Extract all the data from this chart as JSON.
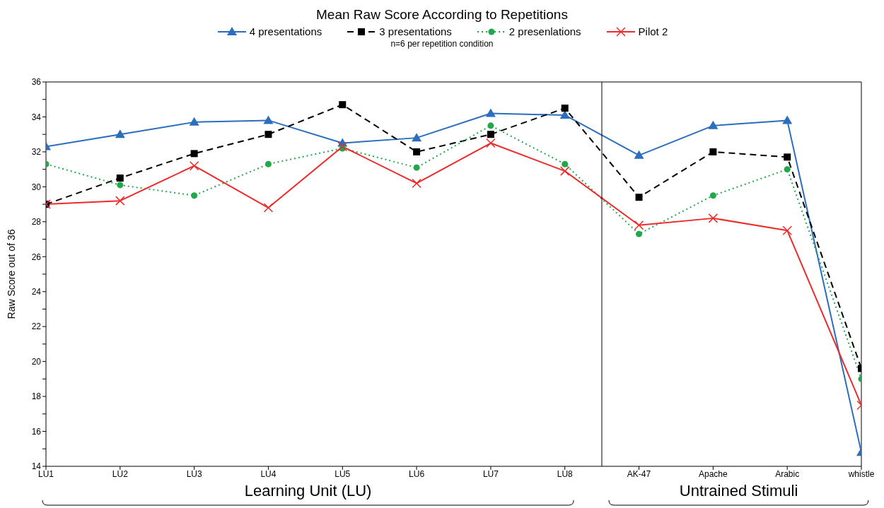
{
  "chart_data": {
    "type": "line",
    "title": "Mean Raw Score According to Repetitions",
    "subtitle": "n=6 per repetition condition",
    "ylabel": "Raw Score out of 36",
    "categories": [
      "LU1",
      "LU2",
      "LU3",
      "LU4",
      "LU5",
      "LU6",
      "LU7",
      "LU8",
      "AK-47",
      "Apache",
      "Arabic",
      "whistle"
    ],
    "series": [
      {
        "name": "4 presentations",
        "color": "#2a6ebd",
        "marker": "triangle",
        "line_style": "solid",
        "values": [
          32.3,
          33.0,
          33.7,
          33.8,
          32.5,
          32.8,
          34.2,
          34.1,
          31.8,
          33.5,
          33.8,
          14.8
        ]
      },
      {
        "name": "3 presentations",
        "color": "#000000",
        "marker": "square",
        "line_style": "dashed",
        "values": [
          29.0,
          30.5,
          31.9,
          33.0,
          34.7,
          32.0,
          33.0,
          34.5,
          29.4,
          32.0,
          31.7,
          19.6
        ]
      },
      {
        "name": "2 presenlations",
        "color": "#22a84a",
        "marker": "circle",
        "line_style": "dotted",
        "values": [
          31.3,
          30.1,
          29.5,
          31.3,
          32.2,
          31.1,
          33.5,
          31.3,
          27.3,
          29.5,
          31.0,
          19.0
        ]
      },
      {
        "name": "Pilot 2",
        "color": "#ee2a2a",
        "marker": "cross",
        "line_style": "solid",
        "values": [
          29.0,
          29.2,
          31.2,
          28.8,
          32.3,
          30.2,
          32.5,
          30.9,
          27.8,
          28.2,
          27.5,
          17.5
        ]
      }
    ],
    "ylim": [
      14,
      36
    ],
    "yticks": [
      14,
      {
        "value": 15,
        "label": null
      },
      16,
      {
        "value": 17,
        "label": null
      },
      18,
      {
        "value": 19,
        "label": null
      },
      20,
      {
        "value": 21,
        "label": null
      },
      22,
      {
        "value": 23,
        "label": null
      },
      24,
      {
        "value": 25,
        "label": null
      },
      26,
      {
        "value": 27,
        "label": null
      },
      28,
      {
        "value": 29,
        "label": null
      },
      30,
      {
        "value": 31,
        "label": null
      },
      32,
      {
        "value": 33,
        "label": null
      },
      34,
      {
        "value": 35,
        "label": null
      },
      36
    ],
    "annotations": [
      "Learning Unit (LU)",
      "Untrained Stimuli"
    ],
    "grid": false,
    "legend": "top"
  }
}
